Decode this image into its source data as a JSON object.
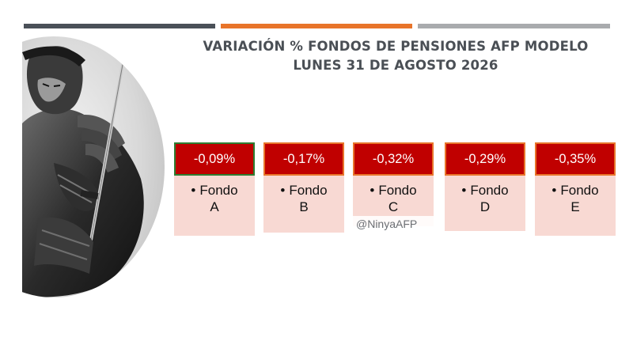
{
  "header": {
    "title_line1": "VARIACIÓN % FONDOS DE PENSIONES AFP MODELO",
    "title_line2": "LUNES 31 DE AGOSTO 2026"
  },
  "colors": {
    "bar_dark": "#4a5058",
    "bar_orange": "#e8742a",
    "bar_gray": "#a9abae",
    "value_bg": "#c00000",
    "label_bg": "#f8d9d3"
  },
  "funds": [
    {
      "value": "-0,09%",
      "word": "Fondo",
      "letter": "A"
    },
    {
      "value": "-0,17%",
      "word": "Fondo",
      "letter": "B"
    },
    {
      "value": "-0,32%",
      "word": "Fondo",
      "letter": "C"
    },
    {
      "value": "-0,29%",
      "word": "Fondo",
      "letter": "D"
    },
    {
      "value": "-0,35%",
      "word": "Fondo",
      "letter": "E"
    }
  ],
  "watermark": "@NinyaAFP",
  "image": {
    "subject": "samurai-warrior-illustration"
  }
}
